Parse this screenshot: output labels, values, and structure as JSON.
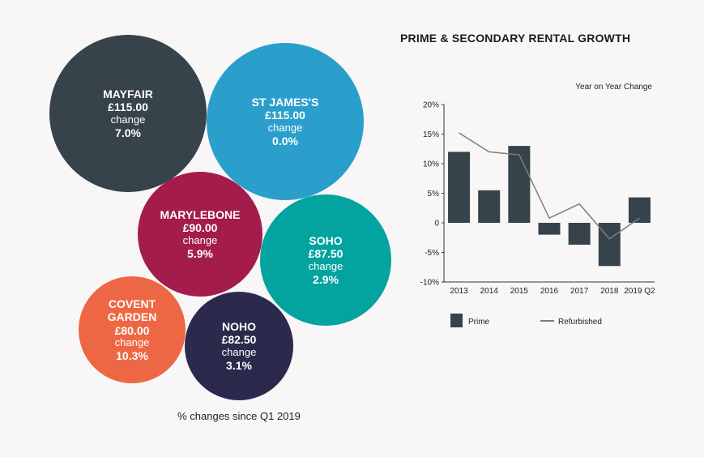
{
  "bubbles": [
    {
      "name": "MAYFAIR",
      "price": "£115.00",
      "change_label": "change",
      "pct": "7.0%",
      "color": "#36434b"
    },
    {
      "name": "ST JAMES'S",
      "price": "£115.00",
      "change_label": "change",
      "pct": "0.0%",
      "color": "#2b9fcb"
    },
    {
      "name": "MARYLEBONE",
      "price": "£90.00",
      "change_label": "change",
      "pct": "5.9%",
      "color": "#a31c4b"
    },
    {
      "name": "SOHO",
      "price": "£87.50",
      "change_label": "change",
      "pct": "2.9%",
      "color": "#03a3a0"
    },
    {
      "name": "COVENT GARDEN",
      "price": "£80.00",
      "change_label": "change",
      "pct": "10.3%",
      "color": "#ee6744"
    },
    {
      "name": "NOHO",
      "price": "£82.50",
      "change_label": "change",
      "pct": "3.1%",
      "color": "#2b2a4d"
    }
  ],
  "footnote": "% changes since Q1 2019",
  "chart_data": {
    "type": "bar",
    "title": "PRIME & SECONDARY RENTAL GROWTH",
    "subtitle": "Year on Year Change",
    "categories": [
      "2013",
      "2014",
      "2015",
      "2016",
      "2017",
      "2018",
      "2019 Q2"
    ],
    "series": [
      {
        "name": "Prime",
        "type": "bar",
        "color": "#36434b",
        "values": [
          12.0,
          5.5,
          13.0,
          -2.0,
          -3.7,
          -7.3,
          4.3
        ]
      },
      {
        "name": "Refurbished",
        "type": "line",
        "color": "#7d7d7d",
        "values": [
          15.2,
          12.0,
          11.5,
          0.8,
          3.2,
          -2.7,
          0.8
        ]
      }
    ],
    "ylim": [
      -10,
      20
    ],
    "yticks": [
      20,
      15,
      10,
      5,
      0,
      -5,
      -10
    ],
    "ytick_labels": [
      "20%",
      "15%",
      "10%",
      "5%",
      "0",
      "-5%",
      "-10%"
    ],
    "grid": false,
    "legend_position": "bottom"
  }
}
